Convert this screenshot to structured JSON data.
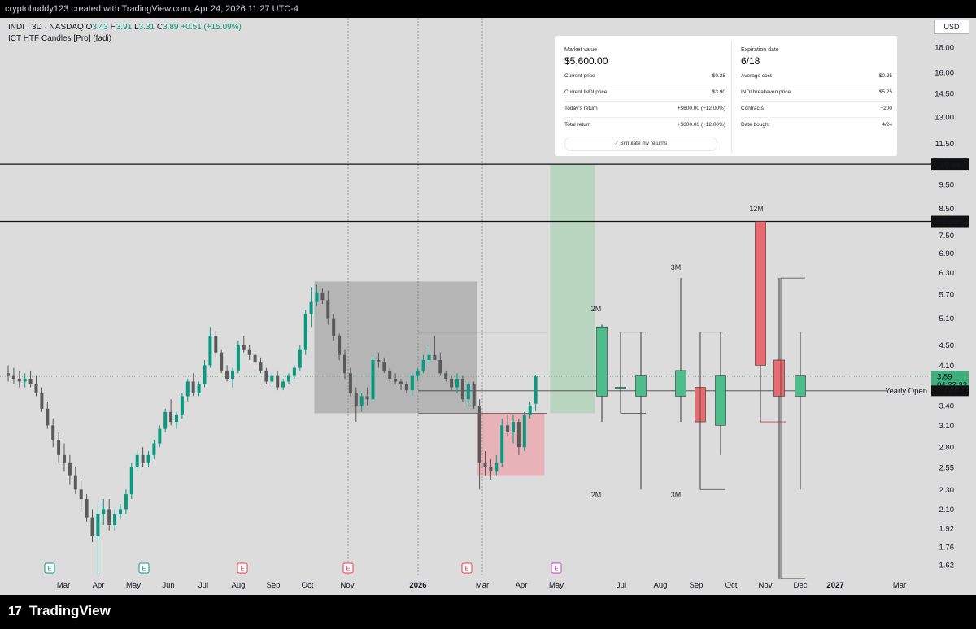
{
  "header": {
    "title": "cryptobuddy123 created with TradingView.com, Apr 24, 2026 11:27 UTC-4"
  },
  "legend": {
    "symbol_line": "INDI · 3D · NASDAQ",
    "o_label": "O",
    "o_value": "3.43",
    "h_label": "H",
    "h_value": "3.91",
    "l_label": "L",
    "l_value": "3.31",
    "c_label": "C",
    "c_value": "3.89",
    "change": "+0.51 (+15.09%)",
    "indicator": "ICT HTF Candles [Pro] (fadi)"
  },
  "currency": "USD",
  "info_panel": {
    "market_value_label": "Market value",
    "market_value": "$5,600.00",
    "left_rows": [
      {
        "k": "Current price",
        "v": "$0.28"
      },
      {
        "k": "Current INDI price",
        "v": "$3.90"
      },
      {
        "k": "Today's return",
        "v": "+$600.00 (+12.00%)"
      },
      {
        "k": "Total return",
        "v": "+$600.00 (+12.00%)"
      }
    ],
    "simulate_label": "Simulate my returns",
    "expiration_label": "Expiration date",
    "expiration_value": "6/18",
    "right_rows": [
      {
        "k": "Average cost",
        "v": "$0.25"
      },
      {
        "k": "INDI breakeven price",
        "v": "$5.25"
      },
      {
        "k": "Contracts",
        "v": "+200"
      },
      {
        "k": "Date bought",
        "v": "4/24"
      }
    ]
  },
  "footer": {
    "brand": "TradingView",
    "logo_mark": "17"
  },
  "colors": {
    "up": "#089981",
    "down": "#f23645",
    "htf_up": "#4dbd8c",
    "htf_down": "#e86a70",
    "bg": "#dcdcdc"
  },
  "chart_data": {
    "type": "candlestick",
    "symbol": "INDI",
    "interval": "3D",
    "exchange": "NASDAQ",
    "y_scale": "log",
    "price_ticks": [
      18.0,
      16.0,
      14.5,
      13.0,
      11.5,
      9.5,
      8.5,
      7.5,
      6.9,
      6.3,
      5.7,
      5.1,
      4.5,
      4.1,
      3.4,
      3.1,
      2.8,
      2.55,
      2.3,
      2.1,
      1.92,
      1.76,
      1.62
    ],
    "price_tick_labels": [
      "18.00",
      "16.00",
      "14.50",
      "13.00",
      "11.50",
      "9.50",
      "8.50",
      "7.50",
      "6.90",
      "6.30",
      "5.70",
      "5.10",
      "4.50",
      "4.10",
      "3.40",
      "3.10",
      "2.80",
      "2.55",
      "2.30",
      "2.10",
      "1.92",
      "1.76",
      "1.62"
    ],
    "time_ticks": [
      "Mar",
      "Apr",
      "May",
      "Jun",
      "Jul",
      "Aug",
      "Sep",
      "Oct",
      "Nov",
      "2026",
      "Mar",
      "Apr",
      "May",
      "Jul",
      "Aug",
      "Sep",
      "Oct",
      "Nov",
      "Dec",
      "2027",
      "Mar"
    ],
    "earnings_markers": [
      "E",
      "E",
      "E",
      "E",
      "E",
      "E"
    ],
    "horizontal_lines": [
      {
        "price": 10.44,
        "label": "10.44"
      },
      {
        "price": 8.0,
        "label": "8.00"
      }
    ],
    "yearly_open": {
      "price": 3.64,
      "label": "Yearly Open",
      "value_label": "3.64"
    },
    "last_price": {
      "value": "3.89",
      "countdown": "04:32:33"
    },
    "htf_labels": {
      "two_m_top": "2M",
      "two_m_bottom": "2M",
      "three_m_top": "3M",
      "three_m_bottom": "3M",
      "twelve_m": "12M"
    },
    "candles": [
      [
        3.95,
        4.1,
        3.8,
        3.9
      ],
      [
        3.9,
        4.05,
        3.75,
        3.85
      ],
      [
        3.85,
        4.0,
        3.7,
        3.8
      ],
      [
        3.8,
        3.95,
        3.7,
        3.85
      ],
      [
        3.85,
        4.0,
        3.7,
        3.75
      ],
      [
        3.75,
        3.9,
        3.55,
        3.6
      ],
      [
        3.6,
        3.7,
        3.3,
        3.35
      ],
      [
        3.35,
        3.45,
        3.05,
        3.1
      ],
      [
        3.1,
        3.2,
        2.8,
        2.9
      ],
      [
        2.9,
        3.0,
        2.6,
        2.7
      ],
      [
        2.7,
        2.85,
        2.5,
        2.6
      ],
      [
        2.6,
        2.7,
        2.35,
        2.45
      ],
      [
        2.45,
        2.55,
        2.25,
        2.3
      ],
      [
        2.3,
        2.4,
        2.1,
        2.2
      ],
      [
        2.2,
        2.25,
        1.98,
        2.02
      ],
      [
        2.02,
        2.1,
        1.8,
        1.85
      ],
      [
        1.85,
        2.15,
        1.55,
        2.05
      ],
      [
        2.05,
        2.2,
        1.95,
        2.1
      ],
      [
        2.1,
        2.2,
        1.9,
        1.95
      ],
      [
        1.95,
        2.1,
        1.9,
        2.05
      ],
      [
        2.05,
        2.15,
        2.0,
        2.1
      ],
      [
        2.1,
        2.3,
        2.05,
        2.25
      ],
      [
        2.25,
        2.6,
        2.2,
        2.55
      ],
      [
        2.55,
        2.75,
        2.5,
        2.7
      ],
      [
        2.7,
        2.8,
        2.55,
        2.6
      ],
      [
        2.6,
        2.75,
        2.55,
        2.7
      ],
      [
        2.7,
        2.9,
        2.65,
        2.85
      ],
      [
        2.85,
        3.1,
        2.8,
        3.05
      ],
      [
        3.05,
        3.35,
        3.0,
        3.3
      ],
      [
        3.3,
        3.5,
        3.1,
        3.15
      ],
      [
        3.15,
        3.3,
        3.05,
        3.25
      ],
      [
        3.25,
        3.6,
        3.2,
        3.55
      ],
      [
        3.55,
        3.85,
        3.45,
        3.8
      ],
      [
        3.8,
        3.95,
        3.55,
        3.6
      ],
      [
        3.6,
        3.8,
        3.55,
        3.75
      ],
      [
        3.75,
        4.2,
        3.7,
        4.1
      ],
      [
        4.1,
        4.9,
        4.05,
        4.7
      ],
      [
        4.7,
        4.8,
        4.25,
        4.35
      ],
      [
        4.35,
        4.4,
        3.95,
        4.0
      ],
      [
        4.0,
        4.1,
        3.8,
        3.85
      ],
      [
        3.85,
        4.05,
        3.7,
        4.0
      ],
      [
        4.0,
        4.6,
        3.95,
        4.5
      ],
      [
        4.5,
        4.7,
        4.35,
        4.4
      ],
      [
        4.4,
        4.5,
        4.2,
        4.3
      ],
      [
        4.3,
        4.35,
        4.05,
        4.15
      ],
      [
        4.15,
        4.25,
        3.95,
        4.0
      ],
      [
        4.0,
        4.05,
        3.75,
        3.8
      ],
      [
        3.8,
        3.95,
        3.75,
        3.9
      ],
      [
        3.9,
        4.0,
        3.65,
        3.7
      ],
      [
        3.7,
        3.85,
        3.65,
        3.8
      ],
      [
        3.8,
        3.95,
        3.75,
        3.9
      ],
      [
        3.9,
        4.1,
        3.85,
        4.05
      ],
      [
        4.05,
        4.5,
        4.0,
        4.4
      ],
      [
        4.4,
        5.3,
        4.3,
        5.2
      ],
      [
        5.2,
        5.9,
        4.9,
        5.5
      ],
      [
        5.5,
        5.95,
        5.4,
        5.75
      ],
      [
        5.75,
        5.85,
        5.45,
        5.55
      ],
      [
        5.55,
        5.8,
        4.95,
        5.1
      ],
      [
        5.1,
        5.2,
        4.6,
        4.7
      ],
      [
        4.7,
        4.75,
        4.2,
        4.3
      ],
      [
        4.3,
        4.4,
        3.85,
        3.95
      ],
      [
        3.95,
        4.05,
        3.55,
        3.6
      ],
      [
        3.6,
        3.7,
        3.15,
        3.4
      ],
      [
        3.4,
        3.6,
        3.3,
        3.55
      ],
      [
        3.55,
        3.7,
        3.4,
        3.5
      ],
      [
        3.5,
        4.3,
        3.45,
        4.2
      ],
      [
        4.2,
        4.35,
        4.05,
        4.15
      ],
      [
        4.15,
        4.25,
        3.95,
        4.0
      ],
      [
        4.0,
        4.05,
        3.8,
        3.85
      ],
      [
        3.85,
        3.95,
        3.75,
        3.8
      ],
      [
        3.8,
        3.85,
        3.65,
        3.75
      ],
      [
        3.75,
        3.8,
        3.6,
        3.65
      ],
      [
        3.65,
        3.95,
        3.55,
        3.9
      ],
      [
        3.9,
        4.05,
        3.8,
        4.0
      ],
      [
        4.0,
        4.3,
        3.95,
        4.2
      ],
      [
        4.2,
        4.5,
        4.1,
        4.3
      ],
      [
        4.3,
        4.7,
        4.2,
        4.2
      ],
      [
        4.2,
        4.35,
        3.9,
        3.95
      ],
      [
        3.95,
        4.0,
        3.8,
        3.85
      ],
      [
        3.85,
        3.9,
        3.65,
        3.7
      ],
      [
        3.7,
        3.95,
        3.6,
        3.85
      ],
      [
        3.85,
        3.9,
        3.45,
        3.5
      ],
      [
        3.5,
        3.8,
        3.4,
        3.75
      ],
      [
        3.75,
        3.8,
        3.35,
        3.4
      ],
      [
        3.4,
        3.5,
        2.3,
        2.6
      ],
      [
        2.6,
        2.75,
        2.45,
        2.55
      ],
      [
        2.55,
        2.65,
        2.4,
        2.5
      ],
      [
        2.5,
        2.7,
        2.45,
        2.6
      ],
      [
        2.6,
        3.2,
        2.55,
        3.1
      ],
      [
        3.1,
        3.25,
        2.95,
        3.0
      ],
      [
        3.0,
        3.25,
        2.85,
        3.15
      ],
      [
        3.15,
        3.2,
        2.7,
        2.8
      ],
      [
        2.8,
        3.3,
        2.75,
        3.25
      ],
      [
        3.25,
        3.45,
        3.2,
        3.4
      ],
      [
        3.43,
        3.91,
        3.31,
        3.89
      ]
    ],
    "htf_candles": [
      {
        "label": "2M",
        "o": 3.55,
        "h": 4.95,
        "l": 3.15,
        "c": 4.9
      },
      {
        "label": "",
        "o": 3.68,
        "h": 4.78,
        "l": 3.28,
        "c": 3.7
      },
      {
        "label": "",
        "o": 3.55,
        "h": 4.78,
        "l": 2.3,
        "c": 3.9
      },
      {
        "label": "3M",
        "o": 3.55,
        "h": 6.15,
        "l": 3.15,
        "c": 4.0
      },
      {
        "label": "",
        "o": 3.7,
        "h": 4.78,
        "l": 2.3,
        "c": 3.15
      },
      {
        "label": "",
        "o": 3.1,
        "h": 4.78,
        "l": 2.7,
        "c": 3.9
      },
      {
        "label": "12M",
        "o": 8.0,
        "h": 8.0,
        "l": 3.15,
        "c": 4.1
      },
      {
        "label": "",
        "o": 4.2,
        "h": 6.15,
        "l": 1.52,
        "c": 3.55
      },
      {
        "label": "",
        "o": 3.55,
        "h": 4.78,
        "l": 2.3,
        "c": 3.9
      }
    ],
    "zones": [
      {
        "type": "premium-box",
        "from_index": 55,
        "to_index": 84,
        "top": 6.05,
        "bottom": 3.28
      },
      {
        "type": "discount-box",
        "from_index": 84,
        "to_index": 96,
        "top": 3.28,
        "bottom": 2.45
      },
      {
        "type": "target-box",
        "from_index": 97,
        "to_index": 105,
        "top": 10.44,
        "bottom": 3.28
      }
    ]
  }
}
